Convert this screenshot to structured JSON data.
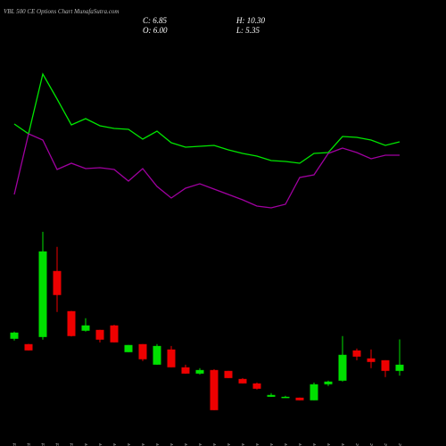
{
  "chart_data": {
    "type": "candlestick",
    "title": "VBL 500 CE Options Chart MunafaSutra.com",
    "summary": {
      "close": "C: 6.85",
      "high": "H: 10.30",
      "open": "O: 6.00",
      "low": "L: 5.35"
    },
    "categories": [
      "27 Oct",
      "28 Oct",
      "29 Oct",
      "30 Oct",
      "31 Oct",
      "03 Nov",
      "04 Nov",
      "06 Nov",
      "07 Nov",
      "10 Nov",
      "11 Nov",
      "12 Nov",
      "13 Nov",
      "14 Nov",
      "17 Nov",
      "18 Nov",
      "19 Nov",
      "20 Nov",
      "21 Nov",
      "24 Nov",
      "25 Nov",
      "26 Nov",
      "27 Nov",
      "28 Nov",
      "01 Dec",
      "02 Dec",
      "03 Dec",
      "04 Dec"
    ],
    "open": [
      10.39,
      9.66,
      10.63,
      19.66,
      14.17,
      11.49,
      11.61,
      12.22,
      8.56,
      9.66,
      6.85,
      8.93,
      6.49,
      5.63,
      6.12,
      6.0,
      4.9,
      4.29,
      2.46,
      2.34,
      2.34,
      1.98,
      4.17,
      4.66,
      8.8,
      7.71,
      7.46,
      6.0
    ],
    "high": [
      11.37,
      9.7,
      25.02,
      22.95,
      14.2,
      13.2,
      11.61,
      12.3,
      9.54,
      9.66,
      9.66,
      9.41,
      6.85,
      6.37,
      6.24,
      6.0,
      5.02,
      4.41,
      2.95,
      2.59,
      2.34,
      4.41,
      4.66,
      10.76,
      9.05,
      8.93,
      7.46,
      10.3
    ],
    "low": [
      10.15,
      8.8,
      10.27,
      14.05,
      10.7,
      11.37,
      9.9,
      9.9,
      8.56,
      7.34,
      6.85,
      6.49,
      5.63,
      5.51,
      0.63,
      5.02,
      4.29,
      3.44,
      2.46,
      2.34,
      1.98,
      1.98,
      3.93,
      4.54,
      7.46,
      6.37,
      5.15,
      5.35
    ],
    "close": [
      11.24,
      8.8,
      22.34,
      16.37,
      10.76,
      12.22,
      10.27,
      9.9,
      9.54,
      7.59,
      9.41,
      6.49,
      5.63,
      6.12,
      0.63,
      5.02,
      4.29,
      3.56,
      2.71,
      2.46,
      1.98,
      4.17,
      4.54,
      8.2,
      7.95,
      7.22,
      6.0,
      6.85
    ],
    "ylim": [
      0,
      30
    ],
    "up_color": "#00e000",
    "down_color": "#ee0000",
    "y2lim": [
      0,
      100
    ],
    "series": [
      {
        "color": "#00e600",
        "axis": "y2",
        "values": [
          60.5,
          55,
          88.5,
          74.5,
          60,
          63.5,
          59.5,
          58,
          57.5,
          52,
          56.5,
          50,
          47.5,
          48,
          48.5,
          46,
          44,
          42.5,
          40,
          39.5,
          38.5,
          44,
          44.5,
          53.5,
          53,
          51.5,
          48.5,
          50.5
        ]
      },
      {
        "color": "#a000a0",
        "axis": "y2",
        "values": [
          21,
          55,
          51.5,
          35,
          38.5,
          35.5,
          36,
          35,
          28.5,
          35.5,
          25.5,
          19,
          24.5,
          27,
          24,
          21,
          18,
          14.5,
          13.5,
          15.5,
          30.5,
          32,
          44,
          47,
          44.5,
          41,
          43,
          43
        ]
      }
    ]
  }
}
